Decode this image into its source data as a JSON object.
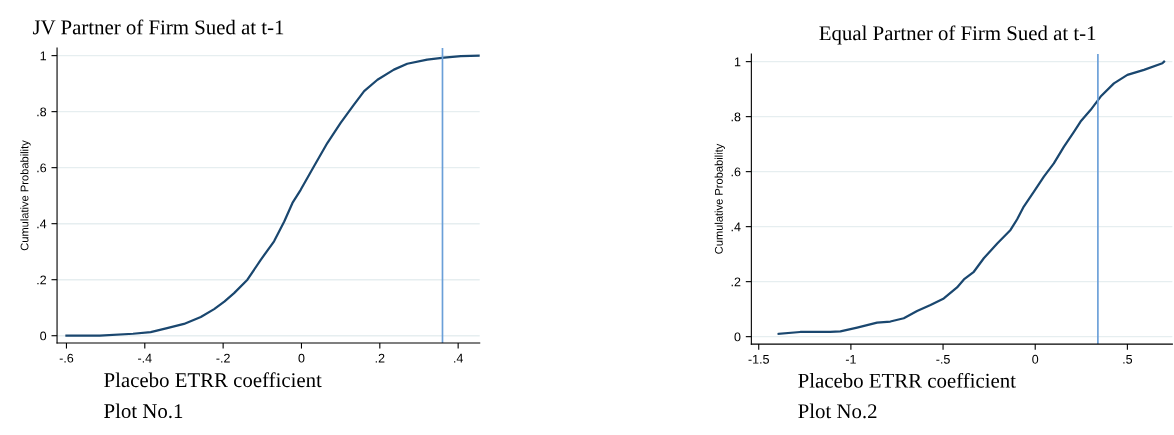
{
  "chart_data": [
    {
      "type": "line",
      "title": "JV Partner of Firm Sued at t-1",
      "xlabel": "Placebo ETRR coefficient",
      "ylabel": "Cumulative Probability",
      "annotations": [
        "Plot No.1"
      ],
      "x": [
        -0.6,
        -0.515,
        -0.43,
        -0.385,
        -0.343,
        -0.3,
        -0.257,
        -0.223,
        -0.197,
        -0.172,
        -0.138,
        -0.104,
        -0.07,
        -0.044,
        -0.023,
        -0.002,
        0.032,
        0.066,
        0.1,
        0.134,
        0.16,
        0.194,
        0.236,
        0.27,
        0.321,
        0.364,
        0.407,
        0.454
      ],
      "series": [
        {
          "color": "#1a476f",
          "values": [
            0.0,
            0.0,
            0.007,
            0.013,
            0.027,
            0.042,
            0.067,
            0.095,
            0.122,
            0.152,
            0.2,
            0.271,
            0.337,
            0.408,
            0.474,
            0.521,
            0.605,
            0.688,
            0.76,
            0.825,
            0.873,
            0.914,
            0.95,
            0.971,
            0.986,
            0.993,
            0.998,
            1.0
          ]
        }
      ],
      "xlim": [
        -0.624,
        0.455
      ],
      "ylim": [
        -0.026,
        1.027
      ],
      "xticks": [
        {
          "value": -0.6,
          "label": "-.6"
        },
        {
          "value": -0.4,
          "label": "-.4"
        },
        {
          "value": -0.2,
          "label": "-.2"
        },
        0,
        {
          "value": 0.2,
          "label": ".2"
        },
        {
          "value": 0.4,
          "label": ".4"
        }
      ],
      "yticks": [
        0,
        {
          "value": 0.2,
          "label": ".2"
        },
        {
          "value": 0.4,
          "label": ".4"
        },
        {
          "value": 0.6,
          "label": ".6"
        },
        {
          "value": 0.8,
          "label": ".8"
        },
        1
      ],
      "ref_lines": [
        {
          "axis": "x",
          "value": 0.36,
          "color": "#6a9fd8"
        }
      ],
      "grid": "y",
      "line_style": "solid",
      "marker": "none"
    },
    {
      "type": "line",
      "title": "Equal Partner of Firm Sued at t-1",
      "xlabel": "Placebo ETRR coefficient",
      "ylabel": "Cumulative Probability",
      "annotations": [
        "Plot No.2"
      ],
      "x": [
        -1.392,
        -1.275,
        -1.112,
        -1.057,
        -0.966,
        -0.858,
        -0.786,
        -0.713,
        -0.641,
        -0.568,
        -0.496,
        -0.424,
        -0.387,
        -0.333,
        -0.279,
        -0.206,
        -0.134,
        -0.098,
        -0.062,
        -0.007,
        0.047,
        0.101,
        0.156,
        0.21,
        0.246,
        0.3,
        0.355,
        0.427,
        0.5,
        0.59,
        0.69,
        0.699
      ],
      "series": [
        {
          "color": "#1a476f",
          "values": [
            0.01,
            0.017,
            0.017,
            0.019,
            0.033,
            0.051,
            0.055,
            0.067,
            0.093,
            0.115,
            0.139,
            0.179,
            0.208,
            0.236,
            0.285,
            0.339,
            0.388,
            0.427,
            0.473,
            0.527,
            0.582,
            0.63,
            0.691,
            0.745,
            0.782,
            0.824,
            0.873,
            0.921,
            0.952,
            0.97,
            0.994,
            1.0
          ]
        }
      ],
      "xlim": [
        -1.54,
        0.744
      ],
      "ylim": [
        -0.027,
        1.028
      ],
      "xticks": [
        {
          "value": -1.5,
          "label": "-1.5"
        },
        {
          "value": -1,
          "label": "-1"
        },
        {
          "value": -0.5,
          "label": "-.5"
        },
        0,
        {
          "value": 0.5,
          "label": ".5"
        }
      ],
      "yticks": [
        0,
        {
          "value": 0.2,
          "label": ".2"
        },
        {
          "value": 0.4,
          "label": ".4"
        },
        {
          "value": 0.6,
          "label": ".6"
        },
        {
          "value": 0.8,
          "label": ".8"
        },
        1
      ],
      "ref_lines": [
        {
          "axis": "x",
          "value": 0.34,
          "color": "#6a9fd8"
        }
      ],
      "grid": "y",
      "line_style": "solid",
      "marker": "none"
    }
  ]
}
